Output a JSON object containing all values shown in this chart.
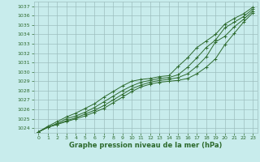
{
  "title": "Graphe pression niveau de la mer (hPa)",
  "bg_color": "#c8ecec",
  "grid_color": "#9dbfbf",
  "line_color": "#2d6a2d",
  "ylim": [
    1023.5,
    1037.5
  ],
  "yticks": [
    1024,
    1025,
    1026,
    1027,
    1028,
    1029,
    1030,
    1031,
    1032,
    1033,
    1034,
    1035,
    1036,
    1037
  ],
  "xlim": [
    -0.5,
    23.5
  ],
  "xticks": [
    0,
    1,
    2,
    3,
    4,
    5,
    6,
    7,
    8,
    9,
    10,
    11,
    12,
    13,
    14,
    15,
    16,
    17,
    18,
    19,
    20,
    21,
    22,
    23
  ],
  "series": [
    [
      1023.6,
      1024.1,
      1024.4,
      1024.7,
      1025.0,
      1025.3,
      1025.7,
      1026.1,
      1026.7,
      1027.3,
      1027.9,
      1028.4,
      1028.7,
      1028.9,
      1029.0,
      1029.1,
      1029.3,
      1029.8,
      1030.5,
      1031.4,
      1032.9,
      1034.1,
      1035.3,
      1036.3
    ],
    [
      1023.6,
      1024.1,
      1024.4,
      1024.8,
      1025.1,
      1025.5,
      1025.9,
      1026.4,
      1027.0,
      1027.6,
      1028.2,
      1028.6,
      1028.9,
      1029.1,
      1029.2,
      1029.4,
      1029.8,
      1030.6,
      1031.6,
      1033.2,
      1033.8,
      1034.8,
      1035.6,
      1036.5
    ],
    [
      1023.6,
      1024.1,
      1024.5,
      1025.0,
      1025.3,
      1025.7,
      1026.2,
      1026.8,
      1027.4,
      1028.0,
      1028.5,
      1028.9,
      1029.1,
      1029.3,
      1029.4,
      1029.7,
      1030.5,
      1031.5,
      1032.6,
      1033.4,
      1034.7,
      1035.3,
      1035.9,
      1036.7
    ],
    [
      1023.6,
      1024.2,
      1024.7,
      1025.2,
      1025.6,
      1026.1,
      1026.6,
      1027.3,
      1027.9,
      1028.5,
      1029.0,
      1029.2,
      1029.3,
      1029.5,
      1029.6,
      1030.6,
      1031.5,
      1032.6,
      1033.3,
      1034.0,
      1035.1,
      1035.7,
      1036.2,
      1036.9
    ]
  ],
  "has_markers": [
    true,
    true,
    true,
    true
  ],
  "title_fontsize": 6,
  "tick_fontsize": 4.5
}
